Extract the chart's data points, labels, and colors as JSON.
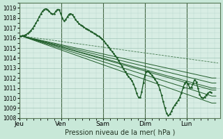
{
  "xlabel": "Pression niveau de la mer( hPa )",
  "day_labels": [
    "Jeu",
    "Ven",
    "Sam",
    "Dim",
    "Lun"
  ],
  "ylim": [
    1008,
    1019.5
  ],
  "yticks": [
    1008,
    1009,
    1010,
    1011,
    1012,
    1013,
    1014,
    1015,
    1016,
    1017,
    1018,
    1019
  ],
  "bg_color": "#c8e8d8",
  "plot_bg_color": "#d8ede4",
  "grid_major_color": "#a0c8b8",
  "grid_minor_color": "#b8d8cc",
  "line_color": "#1e5c28",
  "day_line_color": "#446644"
}
